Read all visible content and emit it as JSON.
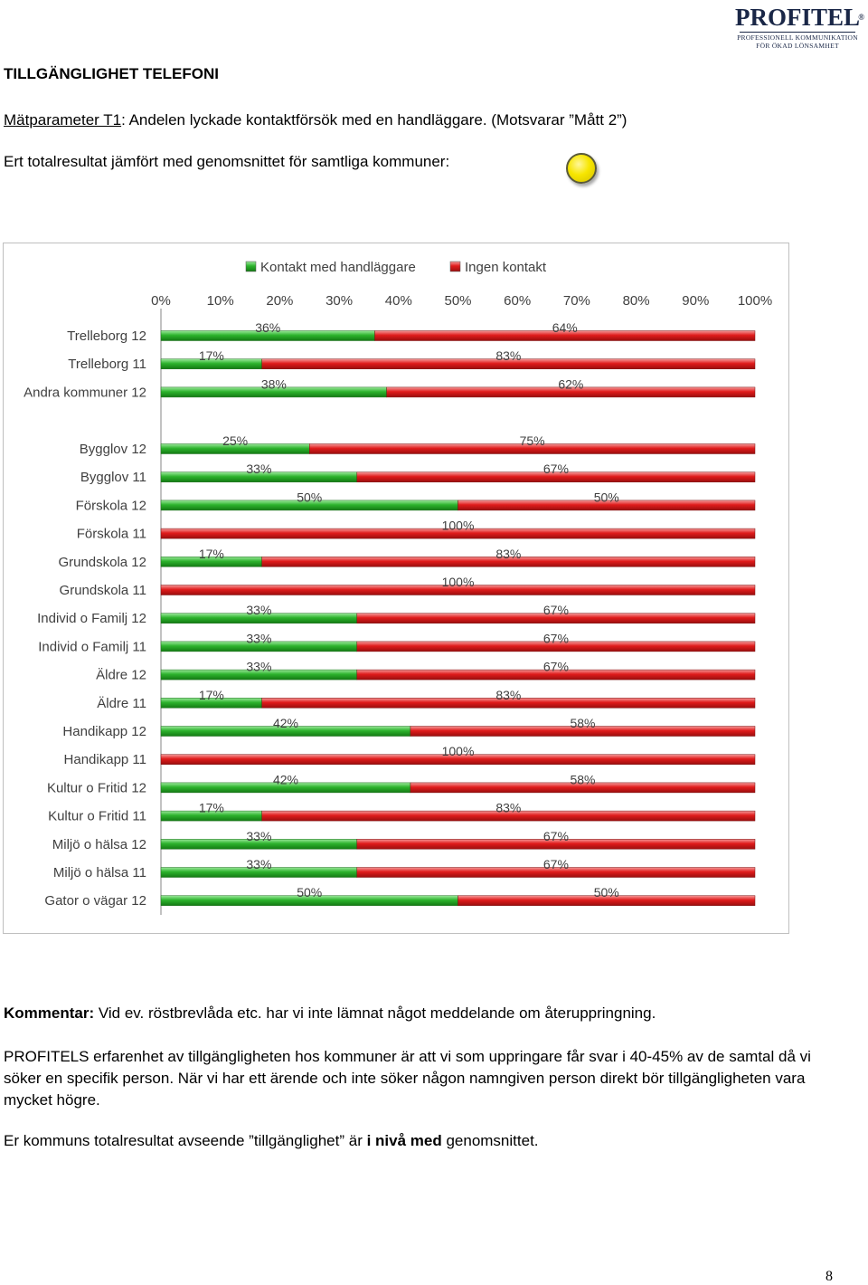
{
  "logo": {
    "main": "PROFITEL",
    "registered": "®",
    "sub1": "PROFESSIONELL KOMMUNIKATION",
    "sub2": "FÖR ÖKAD LÖNSAMHET"
  },
  "title": "TILLGÄNGLIGHET TELEFONI",
  "parameter": {
    "label": "Mätparameter T1",
    "text": ": Andelen lyckade kontaktförsök med en handläggare. (Motsvarar ”Mått 2”)"
  },
  "total_text": "Ert totalresultat jämfört med genomsnittet för samtliga kommuner:",
  "indicator_color": "#f7e600",
  "chart_data": {
    "type": "bar",
    "orientation": "horizontal",
    "stacked": true,
    "axis_ticks": [
      "0%",
      "10%",
      "20%",
      "30%",
      "40%",
      "50%",
      "60%",
      "70%",
      "80%",
      "90%",
      "100%"
    ],
    "legend": [
      {
        "name": "Kontakt med handläggare",
        "color": "#2db32d"
      },
      {
        "name": "Ingen kontakt",
        "color": "#e01b1b"
      }
    ],
    "legend_position": "top",
    "rows": [
      {
        "label": "Trelleborg 12",
        "contact": 36,
        "no_contact": 64,
        "contact_label": "36%",
        "no_contact_label": "64%",
        "group": 1
      },
      {
        "label": "Trelleborg 11",
        "contact": 17,
        "no_contact": 83,
        "contact_label": "17%",
        "no_contact_label": "83%",
        "group": 1
      },
      {
        "label": "Andra kommuner 12",
        "contact": 38,
        "no_contact": 62,
        "contact_label": "38%",
        "no_contact_label": "62%",
        "group": 1
      },
      {
        "label": "Bygglov 12",
        "contact": 25,
        "no_contact": 75,
        "contact_label": "25%",
        "no_contact_label": "75%",
        "group": 2
      },
      {
        "label": "Bygglov 11",
        "contact": 33,
        "no_contact": 67,
        "contact_label": "33%",
        "no_contact_label": "67%",
        "group": 2
      },
      {
        "label": "Förskola 12",
        "contact": 50,
        "no_contact": 50,
        "contact_label": "50%",
        "no_contact_label": "50%",
        "group": 2
      },
      {
        "label": "Förskola 11",
        "contact": 0,
        "no_contact": 100,
        "contact_label": "",
        "no_contact_label": "100%",
        "group": 2
      },
      {
        "label": "Grundskola 12",
        "contact": 17,
        "no_contact": 83,
        "contact_label": "17%",
        "no_contact_label": "83%",
        "group": 2
      },
      {
        "label": "Grundskola 11",
        "contact": 0,
        "no_contact": 100,
        "contact_label": "",
        "no_contact_label": "100%",
        "group": 2
      },
      {
        "label": "Individ o Familj 12",
        "contact": 33,
        "no_contact": 67,
        "contact_label": "33%",
        "no_contact_label": "67%",
        "group": 2
      },
      {
        "label": "Individ o Familj 11",
        "contact": 33,
        "no_contact": 67,
        "contact_label": "33%",
        "no_contact_label": "67%",
        "group": 2
      },
      {
        "label": "Äldre 12",
        "contact": 33,
        "no_contact": 67,
        "contact_label": "33%",
        "no_contact_label": "67%",
        "group": 2
      },
      {
        "label": "Äldre 11",
        "contact": 17,
        "no_contact": 83,
        "contact_label": "17%",
        "no_contact_label": "83%",
        "group": 2
      },
      {
        "label": "Handikapp 12",
        "contact": 42,
        "no_contact": 58,
        "contact_label": "42%",
        "no_contact_label": "58%",
        "group": 2
      },
      {
        "label": "Handikapp 11",
        "contact": 0,
        "no_contact": 100,
        "contact_label": "",
        "no_contact_label": "100%",
        "group": 2
      },
      {
        "label": "Kultur o Fritid 12",
        "contact": 42,
        "no_contact": 58,
        "contact_label": "42%",
        "no_contact_label": "58%",
        "group": 2
      },
      {
        "label": "Kultur o Fritid 11",
        "contact": 17,
        "no_contact": 83,
        "contact_label": "17%",
        "no_contact_label": "83%",
        "group": 2
      },
      {
        "label": "Miljö o hälsa 12",
        "contact": 33,
        "no_contact": 67,
        "contact_label": "33%",
        "no_contact_label": "67%",
        "group": 2
      },
      {
        "label": "Miljö o hälsa 11",
        "contact": 33,
        "no_contact": 67,
        "contact_label": "33%",
        "no_contact_label": "67%",
        "group": 2
      },
      {
        "label": "Gator o vägar 12",
        "contact": 50,
        "no_contact": 50,
        "contact_label": "50%",
        "no_contact_label": "50%",
        "group": 2
      }
    ],
    "xlim": [
      0,
      100
    ]
  },
  "comment": {
    "label": "Kommentar:",
    "text": " Vid ev. röstbrevlåda etc. har vi inte lämnat något meddelande om återuppringning."
  },
  "paragraph": "PROFITELS erfarenhet av tillgängligheten hos kommuner är att vi som uppringare får svar i 40-45% av de samtal då vi söker en specifik person. När vi har ett ärende och inte söker någon namngiven person direkt bör tillgängligheten vara mycket högre.",
  "result": {
    "prefix": "Er kommuns totalresultat avseende ”tillgänglighet” är ",
    "bold": "i nivå med",
    "suffix": " genomsnittet."
  },
  "page_number": "8"
}
